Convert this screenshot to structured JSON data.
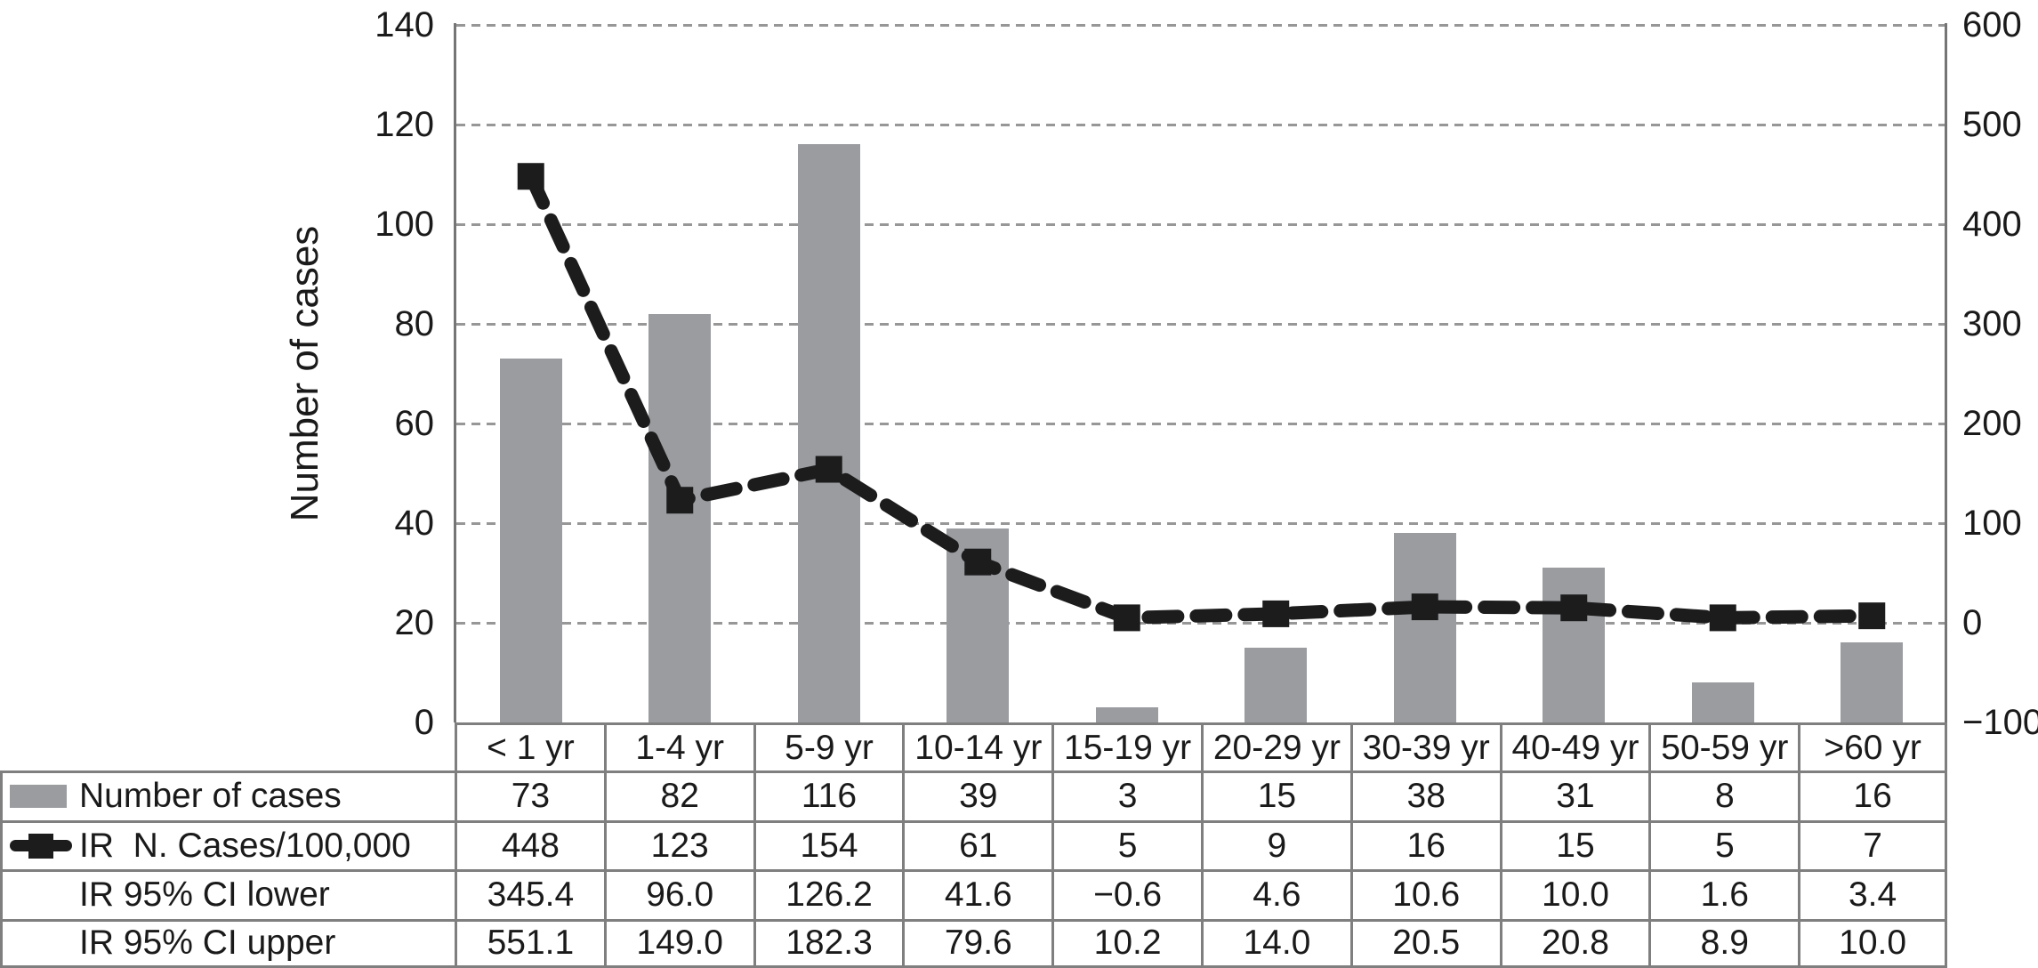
{
  "figure": {
    "y_axis_title": "Number of cases",
    "background": "#ffffff"
  },
  "colors": {
    "bar": "#9a9ca0",
    "line": "#1c1c1c",
    "gridline": "#979797",
    "axis": "#757575",
    "table_border": "#7f7f7f",
    "text": "#1a1a1a"
  },
  "chart_data": {
    "type": "bar",
    "subtype": "combo-bar-line",
    "categories": [
      "< 1 yr",
      "1-4 yr",
      "5-9 yr",
      "10-14 yr",
      "15-19 yr",
      "20-29 yr",
      "30-39 yr",
      "40-49 yr",
      "50-59 yr",
      ">60 yr"
    ],
    "series": [
      {
        "name": "Number of cases",
        "type": "bar",
        "axis": "left",
        "values": [
          73,
          82,
          116,
          39,
          3,
          15,
          38,
          31,
          8,
          16
        ]
      },
      {
        "name": "IR  N. Cases/100,000",
        "type": "line",
        "axis": "right",
        "style": "thick-black-dashed",
        "marker": "square",
        "values": [
          448,
          123,
          154,
          61,
          5,
          9,
          16,
          15,
          5,
          7
        ]
      }
    ],
    "left_axis": {
      "label": "Number of cases",
      "min": 0,
      "max": 140,
      "ticks": [
        0,
        20,
        40,
        60,
        80,
        100,
        120,
        140
      ],
      "tick_labels": [
        "0",
        "20",
        "40",
        "60",
        "80",
        "100",
        "120",
        "140"
      ]
    },
    "right_axis": {
      "label": "",
      "min": -100,
      "max": 600,
      "ticks": [
        -100,
        0,
        100,
        200,
        300,
        400,
        500,
        600
      ],
      "tick_labels": [
        "−100",
        "0",
        "100",
        "200",
        "300",
        "400",
        "500",
        "600"
      ]
    },
    "grid": "horizontal-dashed",
    "legend_position": "in-table-left-column",
    "ci_lower": [
      345.4,
      96.0,
      126.2,
      41.6,
      -0.6,
      4.6,
      10.6,
      10.0,
      1.6,
      3.4
    ],
    "ci_upper": [
      551.1,
      149.0,
      182.3,
      79.6,
      10.2,
      14.0,
      20.5,
      20.8,
      8.9,
      10.0
    ]
  },
  "table": {
    "header_labels": [
      "< 1 yr",
      "1-4 yr",
      "5-9 yr",
      "10-14 yr",
      "15-19 yr",
      "20-29 yr",
      "30-39 yr",
      "40-49 yr",
      "50-59 yr",
      ">60 yr"
    ],
    "rows": [
      {
        "label": "Number of cases",
        "legend": "bar-swatch",
        "values": [
          "73",
          "82",
          "116",
          "39",
          "3",
          "15",
          "38",
          "31",
          "8",
          "16"
        ]
      },
      {
        "label": "IR  N. Cases/100,000",
        "legend": "line-marker",
        "values": [
          "448",
          "123",
          "154",
          "61",
          "5",
          "9",
          "16",
          "15",
          "5",
          "7"
        ]
      },
      {
        "label": "IR 95% CI lower",
        "legend": "none",
        "values": [
          "345.4",
          "96.0",
          "126.2",
          "41.6",
          "−0.6",
          "4.6",
          "10.6",
          "10.0",
          "1.6",
          "3.4"
        ]
      },
      {
        "label": "IR 95% CI upper",
        "legend": "none",
        "values": [
          "551.1",
          "149.0",
          "182.3",
          "79.6",
          "10.2",
          "14.0",
          "20.5",
          "20.8",
          "8.9",
          "10.0"
        ]
      }
    ]
  }
}
